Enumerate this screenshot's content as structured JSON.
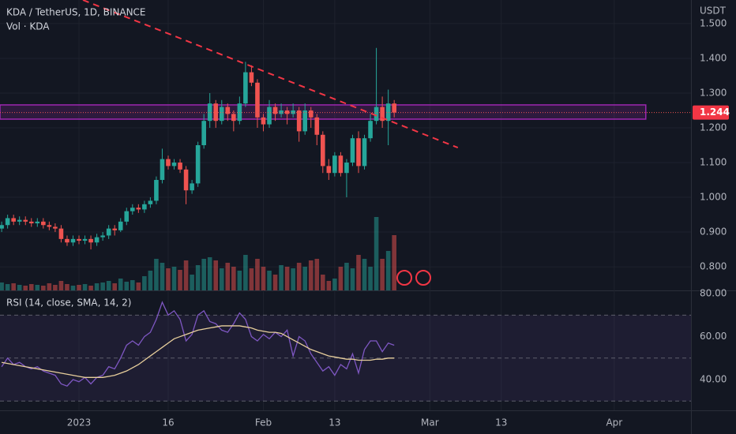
{
  "chart_data": {
    "type": "candlestick",
    "title": "KDA / TetherUS, 1D, BINANCE",
    "volume_label": "Vol · KDA",
    "y_axis_label": "USDT",
    "rsi_label": "RSI (14, close, SMA, 14, 2)",
    "last_price": 1.244,
    "last_price_label": "1.244",
    "up_color": "#26a69a",
    "down_color": "#ef5350",
    "xlim": [
      -13.28,
      102.9
    ],
    "xticks": [
      {
        "value": 0,
        "label": "2023"
      },
      {
        "value": 15,
        "label": "16"
      },
      {
        "value": 31,
        "label": "Feb"
      },
      {
        "value": 43,
        "label": "13"
      },
      {
        "value": 59,
        "label": "Mar"
      },
      {
        "value": 71,
        "label": "13"
      },
      {
        "value": 90,
        "label": "Apr"
      }
    ],
    "ylim": [
      0.732,
      1.568
    ],
    "yticks": [
      {
        "value": 0.8,
        "label": "0.800"
      },
      {
        "value": 0.9,
        "label": "0.900"
      },
      {
        "value": 1.0,
        "label": "1.000"
      },
      {
        "value": 1.1,
        "label": "1.100"
      },
      {
        "value": 1.2,
        "label": "1.200"
      },
      {
        "value": 1.3,
        "label": "1.300"
      },
      {
        "value": 1.4,
        "label": "1.400"
      },
      {
        "value": 1.5,
        "label": "1.500"
      }
    ],
    "x": [
      -13,
      -12,
      -11,
      -10,
      -9,
      -8,
      -7,
      -6,
      -5,
      -4,
      -3,
      -2,
      -1,
      0,
      1,
      2,
      3,
      4,
      5,
      6,
      7,
      8,
      9,
      10,
      11,
      12,
      13,
      14,
      15,
      16,
      17,
      18,
      19,
      20,
      21,
      22,
      23,
      24,
      25,
      26,
      27,
      28,
      29,
      30,
      31,
      32,
      33,
      34,
      35,
      36,
      37,
      38,
      39,
      40,
      41,
      42,
      43,
      44,
      45,
      46,
      47,
      48,
      49,
      50,
      51,
      52,
      53
    ],
    "open": [
      0.91,
      0.92,
      0.94,
      0.93,
      0.935,
      0.93,
      0.925,
      0.93,
      0.92,
      0.915,
      0.91,
      0.88,
      0.87,
      0.88,
      0.875,
      0.88,
      0.87,
      0.885,
      0.89,
      0.91,
      0.905,
      0.93,
      0.96,
      0.97,
      0.965,
      0.98,
      0.99,
      1.05,
      1.11,
      1.09,
      1.1,
      1.08,
      1.02,
      1.04,
      1.15,
      1.22,
      1.27,
      1.22,
      1.26,
      1.24,
      1.22,
      1.27,
      1.36,
      1.33,
      1.23,
      1.21,
      1.26,
      1.24,
      1.25,
      1.24,
      1.25,
      1.19,
      1.25,
      1.23,
      1.18,
      1.09,
      1.07,
      1.12,
      1.07,
      1.1,
      1.17,
      1.09,
      1.17,
      1.22,
      1.26,
      1.22,
      1.27
    ],
    "high": [
      0.93,
      0.95,
      0.95,
      0.945,
      0.945,
      0.94,
      0.94,
      0.94,
      0.93,
      0.925,
      0.92,
      0.89,
      0.89,
      0.89,
      0.89,
      0.89,
      0.895,
      0.9,
      0.92,
      0.92,
      0.94,
      0.97,
      0.98,
      0.98,
      0.99,
      1.0,
      1.06,
      1.14,
      1.12,
      1.11,
      1.11,
      1.09,
      1.05,
      1.16,
      1.24,
      1.3,
      1.28,
      1.28,
      1.27,
      1.25,
      1.29,
      1.39,
      1.38,
      1.34,
      1.24,
      1.28,
      1.27,
      1.27,
      1.26,
      1.27,
      1.26,
      1.27,
      1.26,
      1.24,
      1.19,
      1.11,
      1.13,
      1.13,
      1.11,
      1.18,
      1.19,
      1.18,
      1.24,
      1.43,
      1.29,
      1.31,
      1.28
    ],
    "low": [
      0.9,
      0.91,
      0.92,
      0.92,
      0.92,
      0.915,
      0.915,
      0.91,
      0.905,
      0.9,
      0.87,
      0.86,
      0.86,
      0.865,
      0.865,
      0.85,
      0.86,
      0.875,
      0.88,
      0.89,
      0.9,
      0.92,
      0.95,
      0.955,
      0.955,
      0.97,
      0.98,
      1.04,
      1.08,
      1.08,
      1.07,
      0.98,
      1.01,
      1.03,
      1.14,
      1.2,
      1.2,
      1.21,
      1.22,
      1.19,
      1.21,
      1.26,
      1.32,
      1.2,
      1.19,
      1.2,
      1.22,
      1.23,
      1.21,
      1.23,
      1.16,
      1.18,
      1.2,
      1.15,
      1.07,
      1.05,
      1.06,
      1.06,
      1.0,
      1.09,
      1.07,
      1.08,
      1.16,
      1.21,
      1.2,
      1.15,
      1.23
    ],
    "close": [
      0.92,
      0.94,
      0.93,
      0.935,
      0.93,
      0.925,
      0.93,
      0.92,
      0.915,
      0.91,
      0.88,
      0.87,
      0.88,
      0.875,
      0.88,
      0.87,
      0.885,
      0.89,
      0.91,
      0.905,
      0.93,
      0.96,
      0.97,
      0.965,
      0.98,
      0.99,
      1.05,
      1.11,
      1.09,
      1.1,
      1.08,
      1.02,
      1.04,
      1.15,
      1.22,
      1.27,
      1.22,
      1.26,
      1.24,
      1.22,
      1.27,
      1.36,
      1.33,
      1.23,
      1.21,
      1.26,
      1.24,
      1.25,
      1.24,
      1.25,
      1.19,
      1.25,
      1.23,
      1.18,
      1.09,
      1.07,
      1.12,
      1.07,
      1.1,
      1.17,
      1.09,
      1.17,
      1.22,
      1.26,
      1.22,
      1.27,
      1.244
    ],
    "volume": [
      10,
      8,
      9,
      7,
      6,
      8,
      7,
      6,
      9,
      7,
      12,
      8,
      6,
      7,
      8,
      6,
      9,
      10,
      12,
      9,
      15,
      11,
      13,
      10,
      18,
      25,
      40,
      35,
      28,
      30,
      26,
      38,
      20,
      32,
      40,
      42,
      38,
      28,
      35,
      30,
      25,
      45,
      28,
      40,
      30,
      25,
      20,
      32,
      30,
      28,
      35,
      30,
      38,
      40,
      20,
      12,
      15,
      30,
      35,
      28,
      45,
      40,
      30,
      93,
      40,
      50,
      70
    ],
    "trendline": {
      "color": "#f23645",
      "x": [
        0.66,
        63.7
      ],
      "y": [
        1.568,
        1.143
      ]
    },
    "zone": {
      "color": "#9c27b0",
      "x": [
        -13.28,
        95.3
      ],
      "y": [
        1.225,
        1.266
      ]
    },
    "rsi_ylim": [
      25.7,
      81.5
    ],
    "rsi_yticks": [
      {
        "value": 40,
        "label": "40.00"
      },
      {
        "value": 60,
        "label": "60.00"
      },
      {
        "value": 80,
        "label": "80.00"
      }
    ],
    "rsi_levels": [
      70,
      50,
      30
    ],
    "rsi": {
      "color": "#7e57c2",
      "values": [
        46,
        50,
        47,
        48,
        46,
        45,
        46,
        44,
        43,
        42,
        38,
        37,
        40,
        39,
        41,
        38,
        41,
        42,
        46,
        45,
        50,
        56,
        58,
        56,
        60,
        62,
        68,
        76,
        70,
        72,
        68,
        58,
        61,
        70,
        72,
        67,
        66,
        63,
        62,
        66,
        71,
        68,
        60,
        58,
        61,
        59,
        62,
        60,
        63,
        51,
        60,
        58,
        52,
        48,
        44,
        46,
        42,
        47,
        45,
        52,
        43,
        54,
        58,
        58,
        53,
        57,
        56
      ]
    },
    "rsi_sma": {
      "color": "#e8cf9c",
      "values": [
        48,
        47.5,
        47,
        46.5,
        46,
        45.5,
        45,
        44.5,
        44,
        43.5,
        43,
        42.5,
        42,
        41.5,
        41,
        41,
        41,
        41,
        41.5,
        42,
        43,
        44,
        45.5,
        47,
        49,
        51,
        53,
        55,
        57,
        59,
        60,
        61,
        62,
        63,
        63.5,
        64,
        64.5,
        65,
        65,
        65,
        65,
        64.5,
        64,
        63,
        62.5,
        62,
        62,
        61.5,
        60,
        58.5,
        57,
        55.5,
        54,
        53,
        52,
        51,
        50.5,
        50,
        49.5,
        49.5,
        49,
        49,
        49,
        49.5,
        49.5,
        50,
        50
      ]
    }
  }
}
